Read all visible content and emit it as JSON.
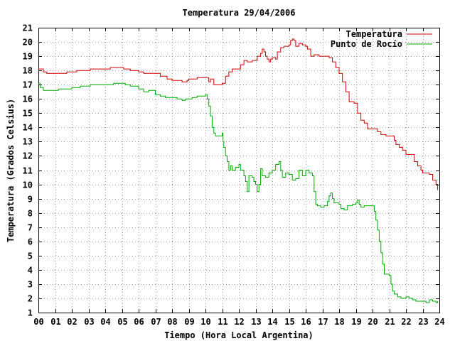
{
  "chart_data": {
    "type": "line",
    "title": "Temperatura 29/04/2006",
    "xlabel": "Tiempo (Hora Local Argentina)",
    "ylabel": "Temperatura (Grados Celsius)",
    "xlim": [
      0,
      24
    ],
    "ylim": [
      1,
      21
    ],
    "x_ticks": [
      0,
      1,
      2,
      3,
      4,
      5,
      6,
      7,
      8,
      9,
      10,
      11,
      12,
      13,
      14,
      15,
      16,
      17,
      18,
      19,
      20,
      21,
      22,
      23,
      24
    ],
    "x_tick_labels": [
      "00",
      "01",
      "02",
      "03",
      "04",
      "05",
      "06",
      "07",
      "08",
      "09",
      "10",
      "11",
      "12",
      "13",
      "14",
      "15",
      "16",
      "17",
      "18",
      "19",
      "20",
      "21",
      "22",
      "23",
      "24"
    ],
    "y_ticks": [
      1,
      2,
      3,
      4,
      5,
      6,
      7,
      8,
      9,
      10,
      11,
      12,
      13,
      14,
      15,
      16,
      17,
      18,
      19,
      20,
      21
    ],
    "y_tick_labels": [
      "1",
      "2",
      "3",
      "4",
      "5",
      "6",
      "7",
      "8",
      "9",
      "10",
      "11",
      "12",
      "13",
      "14",
      "15",
      "16",
      "17",
      "18",
      "19",
      "20",
      "21"
    ],
    "grid": true,
    "legend_position": "top-right",
    "series": [
      {
        "name": "Temperatura",
        "color": "#cc0000",
        "points": [
          [
            0.0,
            18.1
          ],
          [
            0.3,
            17.9
          ],
          [
            0.5,
            17.8
          ],
          [
            1.0,
            17.8
          ],
          [
            1.5,
            17.8
          ],
          [
            1.7,
            17.9
          ],
          [
            2.0,
            17.9
          ],
          [
            2.3,
            18.0
          ],
          [
            3.0,
            18.0
          ],
          [
            3.1,
            18.1
          ],
          [
            4.0,
            18.1
          ],
          [
            4.3,
            18.2
          ],
          [
            5.0,
            18.2
          ],
          [
            5.1,
            18.1
          ],
          [
            5.5,
            18.0
          ],
          [
            6.0,
            17.9
          ],
          [
            6.3,
            17.8
          ],
          [
            7.0,
            17.8
          ],
          [
            7.3,
            17.6
          ],
          [
            7.7,
            17.4
          ],
          [
            8.0,
            17.3
          ],
          [
            8.5,
            17.3
          ],
          [
            8.6,
            17.2
          ],
          [
            8.9,
            17.3
          ],
          [
            9.0,
            17.4
          ],
          [
            9.3,
            17.4
          ],
          [
            9.5,
            17.5
          ],
          [
            10.0,
            17.5
          ],
          [
            10.2,
            17.2
          ],
          [
            10.3,
            17.4
          ],
          [
            10.5,
            17.0
          ],
          [
            10.7,
            17.0
          ],
          [
            11.0,
            17.1
          ],
          [
            11.2,
            17.6
          ],
          [
            11.4,
            17.9
          ],
          [
            11.6,
            18.1
          ],
          [
            12.0,
            18.1
          ],
          [
            12.1,
            18.4
          ],
          [
            12.3,
            18.7
          ],
          [
            12.5,
            18.6
          ],
          [
            12.8,
            18.7
          ],
          [
            13.0,
            18.7
          ],
          [
            13.1,
            19.0
          ],
          [
            13.3,
            19.2
          ],
          [
            13.4,
            19.5
          ],
          [
            13.5,
            19.3
          ],
          [
            13.6,
            19.0
          ],
          [
            13.7,
            18.8
          ],
          [
            13.8,
            18.6
          ],
          [
            13.9,
            18.8
          ],
          [
            14.0,
            18.9
          ],
          [
            14.2,
            18.8
          ],
          [
            14.3,
            19.3
          ],
          [
            14.5,
            19.6
          ],
          [
            14.7,
            19.7
          ],
          [
            15.0,
            19.8
          ],
          [
            15.1,
            20.1
          ],
          [
            15.2,
            20.2
          ],
          [
            15.3,
            20.1
          ],
          [
            15.4,
            19.7
          ],
          [
            15.6,
            19.9
          ],
          [
            15.8,
            19.8
          ],
          [
            16.0,
            19.7
          ],
          [
            16.1,
            19.5
          ],
          [
            16.3,
            19.0
          ],
          [
            16.5,
            19.1
          ],
          [
            16.8,
            19.0
          ],
          [
            17.0,
            19.0
          ],
          [
            17.2,
            19.0
          ],
          [
            17.4,
            18.9
          ],
          [
            17.6,
            18.6
          ],
          [
            17.8,
            18.2
          ],
          [
            18.0,
            17.8
          ],
          [
            18.2,
            17.2
          ],
          [
            18.4,
            16.5
          ],
          [
            18.6,
            15.8
          ],
          [
            18.9,
            15.7
          ],
          [
            19.1,
            15.0
          ],
          [
            19.3,
            14.5
          ],
          [
            19.5,
            14.3
          ],
          [
            19.7,
            13.9
          ],
          [
            20.0,
            13.9
          ],
          [
            20.3,
            13.7
          ],
          [
            20.5,
            13.5
          ],
          [
            20.8,
            13.4
          ],
          [
            21.2,
            13.4
          ],
          [
            21.3,
            13.1
          ],
          [
            21.4,
            12.8
          ],
          [
            21.6,
            12.6
          ],
          [
            21.8,
            12.4
          ],
          [
            22.0,
            12.1
          ],
          [
            22.4,
            12.1
          ],
          [
            22.5,
            11.6
          ],
          [
            22.7,
            11.3
          ],
          [
            22.9,
            11.0
          ],
          [
            23.0,
            10.8
          ],
          [
            23.4,
            10.7
          ],
          [
            23.6,
            10.3
          ],
          [
            23.8,
            10.0
          ],
          [
            23.9,
            9.6
          ]
        ]
      },
      {
        "name": "Punto de Rocío",
        "color": "#00aa00",
        "points": [
          [
            0.0,
            17.1
          ],
          [
            0.1,
            16.8
          ],
          [
            0.3,
            16.6
          ],
          [
            0.8,
            16.6
          ],
          [
            1.0,
            16.6
          ],
          [
            1.2,
            16.7
          ],
          [
            1.7,
            16.7
          ],
          [
            2.0,
            16.8
          ],
          [
            2.5,
            16.9
          ],
          [
            3.0,
            16.9
          ],
          [
            3.1,
            17.0
          ],
          [
            4.0,
            17.0
          ],
          [
            4.3,
            17.0
          ],
          [
            4.5,
            17.1
          ],
          [
            5.0,
            17.1
          ],
          [
            5.2,
            17.0
          ],
          [
            5.5,
            16.9
          ],
          [
            6.0,
            16.7
          ],
          [
            6.3,
            16.5
          ],
          [
            6.6,
            16.6
          ],
          [
            7.0,
            16.3
          ],
          [
            7.3,
            16.2
          ],
          [
            7.6,
            16.1
          ],
          [
            8.0,
            16.1
          ],
          [
            8.3,
            16.0
          ],
          [
            8.6,
            15.9
          ],
          [
            8.8,
            16.0
          ],
          [
            9.0,
            16.0
          ],
          [
            9.2,
            16.1
          ],
          [
            9.5,
            16.2
          ],
          [
            9.8,
            16.2
          ],
          [
            10.0,
            16.3
          ],
          [
            10.1,
            16.0
          ],
          [
            10.2,
            15.5
          ],
          [
            10.3,
            14.8
          ],
          [
            10.4,
            14.0
          ],
          [
            10.5,
            13.6
          ],
          [
            10.6,
            13.4
          ],
          [
            10.8,
            13.4
          ],
          [
            10.9,
            13.4
          ],
          [
            11.0,
            13.6
          ],
          [
            11.05,
            13.0
          ],
          [
            11.1,
            12.6
          ],
          [
            11.2,
            12.0
          ],
          [
            11.3,
            11.6
          ],
          [
            11.4,
            11.0
          ],
          [
            11.5,
            11.3
          ],
          [
            11.6,
            11.0
          ],
          [
            11.8,
            11.2
          ],
          [
            12.0,
            11.4
          ],
          [
            12.1,
            11.0
          ],
          [
            12.3,
            10.6
          ],
          [
            12.4,
            10.2
          ],
          [
            12.5,
            9.5
          ],
          [
            12.6,
            10.6
          ],
          [
            12.8,
            10.5
          ],
          [
            12.9,
            10.2
          ],
          [
            13.0,
            10.0
          ],
          [
            13.1,
            9.5
          ],
          [
            13.2,
            10.0
          ],
          [
            13.3,
            11.1
          ],
          [
            13.4,
            10.6
          ],
          [
            13.6,
            10.5
          ],
          [
            13.8,
            10.8
          ],
          [
            14.0,
            11.0
          ],
          [
            14.2,
            11.4
          ],
          [
            14.4,
            11.6
          ],
          [
            14.5,
            11.0
          ],
          [
            14.6,
            10.5
          ],
          [
            14.8,
            10.8
          ],
          [
            15.0,
            10.7
          ],
          [
            15.2,
            10.3
          ],
          [
            15.4,
            10.4
          ],
          [
            15.6,
            11.0
          ],
          [
            15.8,
            10.6
          ],
          [
            16.0,
            11.0
          ],
          [
            16.2,
            10.8
          ],
          [
            16.4,
            10.6
          ],
          [
            16.5,
            9.5
          ],
          [
            16.6,
            8.6
          ],
          [
            16.7,
            8.5
          ],
          [
            16.9,
            8.4
          ],
          [
            17.1,
            8.5
          ],
          [
            17.3,
            8.8
          ],
          [
            17.4,
            9.2
          ],
          [
            17.5,
            9.4
          ],
          [
            17.6,
            9.0
          ],
          [
            17.7,
            8.7
          ],
          [
            18.0,
            8.6
          ],
          [
            18.1,
            8.3
          ],
          [
            18.3,
            8.2
          ],
          [
            18.5,
            8.5
          ],
          [
            18.8,
            8.6
          ],
          [
            19.0,
            8.7
          ],
          [
            19.1,
            8.9
          ],
          [
            19.2,
            8.6
          ],
          [
            19.3,
            8.4
          ],
          [
            19.5,
            8.5
          ],
          [
            20.0,
            8.5
          ],
          [
            20.1,
            8.1
          ],
          [
            20.2,
            7.5
          ],
          [
            20.3,
            6.8
          ],
          [
            20.4,
            6.0
          ],
          [
            20.5,
            5.2
          ],
          [
            20.6,
            4.4
          ],
          [
            20.7,
            3.7
          ],
          [
            20.9,
            3.7
          ],
          [
            21.0,
            3.6
          ],
          [
            21.1,
            3.0
          ],
          [
            21.2,
            2.5
          ],
          [
            21.3,
            2.3
          ],
          [
            21.5,
            2.1
          ],
          [
            21.7,
            2.0
          ],
          [
            22.0,
            2.1
          ],
          [
            22.2,
            2.0
          ],
          [
            22.4,
            1.9
          ],
          [
            22.6,
            1.8
          ],
          [
            22.8,
            1.8
          ],
          [
            23.0,
            1.8
          ],
          [
            23.2,
            1.7
          ],
          [
            23.4,
            1.9
          ],
          [
            23.6,
            1.8
          ],
          [
            23.8,
            1.7
          ],
          [
            23.9,
            1.8
          ]
        ]
      }
    ]
  }
}
